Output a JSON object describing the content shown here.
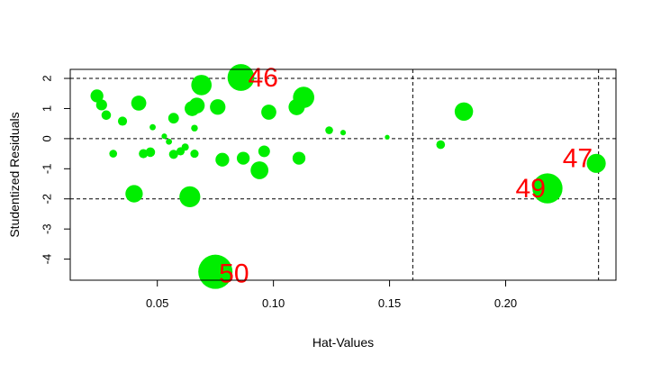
{
  "chart_data": {
    "type": "scatter",
    "title": "",
    "xlabel": "Hat-Values",
    "ylabel": "Studentized Residuals",
    "xlim": [
      0.0125,
      0.2475
    ],
    "ylim": [
      -4.7,
      2.3
    ],
    "x_ticks": [
      0.05,
      0.1,
      0.15,
      0.2
    ],
    "x_tick_labels": [
      "0.05",
      "0.10",
      "0.15",
      "0.20"
    ],
    "y_ticks": [
      -4,
      -3,
      -2,
      -1,
      0,
      1,
      2
    ],
    "y_tick_labels": [
      "-4",
      "-3",
      "-2",
      "-1",
      "0",
      "1",
      "2"
    ],
    "reference_lines": {
      "horizontal": [
        -2,
        0,
        2
      ],
      "vertical": [
        0.16,
        0.24
      ]
    },
    "grid": false,
    "point_color": "#00ee00",
    "label_color": "#ff0000",
    "size_encoding": "Cook's distance",
    "points": [
      {
        "x": 0.024,
        "y": 1.42,
        "size": 0.22
      },
      {
        "x": 0.026,
        "y": 1.12,
        "size": 0.16
      },
      {
        "x": 0.028,
        "y": 0.78,
        "size": 0.12
      },
      {
        "x": 0.031,
        "y": -0.5,
        "size": 0.08
      },
      {
        "x": 0.035,
        "y": 0.58,
        "size": 0.11
      },
      {
        "x": 0.04,
        "y": -1.83,
        "size": 0.4
      },
      {
        "x": 0.042,
        "y": 1.18,
        "size": 0.3
      },
      {
        "x": 0.044,
        "y": -0.5,
        "size": 0.11
      },
      {
        "x": 0.047,
        "y": -0.45,
        "size": 0.12
      },
      {
        "x": 0.048,
        "y": 0.38,
        "size": 0.05
      },
      {
        "x": 0.053,
        "y": 0.08,
        "size": 0.04
      },
      {
        "x": 0.055,
        "y": -0.1,
        "size": 0.05
      },
      {
        "x": 0.057,
        "y": -0.52,
        "size": 0.11
      },
      {
        "x": 0.057,
        "y": 0.68,
        "size": 0.15
      },
      {
        "x": 0.06,
        "y": -0.42,
        "size": 0.09
      },
      {
        "x": 0.062,
        "y": -0.28,
        "size": 0.07
      },
      {
        "x": 0.064,
        "y": -1.93,
        "size": 0.58
      },
      {
        "x": 0.065,
        "y": 1.0,
        "size": 0.3
      },
      {
        "x": 0.066,
        "y": -0.5,
        "size": 0.09
      },
      {
        "x": 0.066,
        "y": 0.35,
        "size": 0.06
      },
      {
        "x": 0.067,
        "y": 1.1,
        "size": 0.33
      },
      {
        "x": 0.069,
        "y": 1.78,
        "size": 0.55
      },
      {
        "x": 0.075,
        "y": -4.42,
        "size": 1.55
      },
      {
        "x": 0.076,
        "y": 1.05,
        "size": 0.32
      },
      {
        "x": 0.078,
        "y": -0.7,
        "size": 0.25
      },
      {
        "x": 0.086,
        "y": 2.03,
        "size": 0.95
      },
      {
        "x": 0.087,
        "y": -0.65,
        "size": 0.22
      },
      {
        "x": 0.094,
        "y": -1.05,
        "size": 0.42
      },
      {
        "x": 0.096,
        "y": -0.42,
        "size": 0.18
      },
      {
        "x": 0.098,
        "y": 0.88,
        "size": 0.3
      },
      {
        "x": 0.11,
        "y": 1.05,
        "size": 0.35
      },
      {
        "x": 0.111,
        "y": -0.65,
        "size": 0.22
      },
      {
        "x": 0.113,
        "y": 1.37,
        "size": 0.6
      },
      {
        "x": 0.124,
        "y": 0.28,
        "size": 0.08
      },
      {
        "x": 0.13,
        "y": 0.2,
        "size": 0.04
      },
      {
        "x": 0.149,
        "y": 0.05,
        "size": 0.03
      },
      {
        "x": 0.172,
        "y": -0.2,
        "size": 0.1
      },
      {
        "x": 0.182,
        "y": 0.9,
        "size": 0.45
      },
      {
        "x": 0.218,
        "y": -1.65,
        "size": 1.2
      },
      {
        "x": 0.239,
        "y": -0.82,
        "size": 0.48
      }
    ],
    "labeled_points": [
      {
        "label": "46",
        "x": 0.086,
        "y": 2.03
      },
      {
        "label": "50",
        "x": 0.075,
        "y": -4.42
      },
      {
        "label": "47",
        "x": 0.239,
        "y": -0.82
      },
      {
        "label": "49",
        "x": 0.218,
        "y": -1.65
      }
    ]
  }
}
